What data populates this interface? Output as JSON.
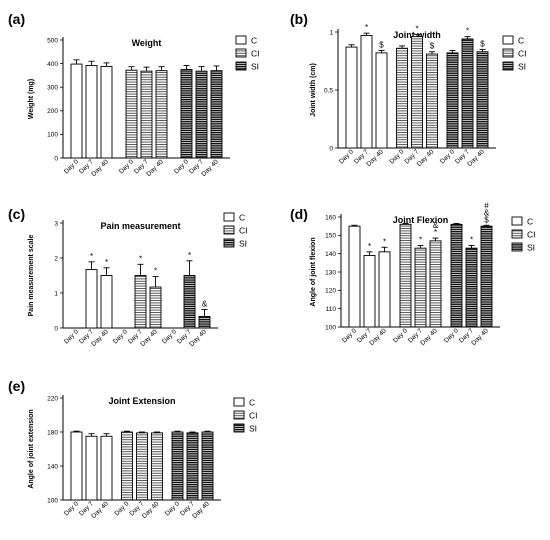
{
  "chart_data": [
    {
      "type": "bar",
      "panel": "(a)",
      "title": "Weight",
      "ylabel": "Weight (mg)",
      "xlabel": "",
      "ylim": [
        0,
        500
      ],
      "yticks": [
        0,
        100,
        200,
        300,
        400,
        500
      ],
      "grid": false,
      "legend_position": "right",
      "groups": [
        "C",
        "CI",
        "SI"
      ],
      "categories": [
        "Day 0",
        "Day 7",
        "Day 40"
      ],
      "series": [
        {
          "name": "C",
          "values": [
            398,
            392,
            388
          ],
          "errors": [
            18,
            18,
            15
          ],
          "annotations": [
            "",
            "",
            ""
          ]
        },
        {
          "name": "CI",
          "values": [
            372,
            368,
            370
          ],
          "errors": [
            15,
            17,
            17
          ],
          "annotations": [
            "",
            "",
            ""
          ]
        },
        {
          "name": "SI",
          "values": [
            375,
            368,
            370
          ],
          "errors": [
            17,
            20,
            20
          ],
          "annotations": [
            "",
            "",
            ""
          ]
        }
      ]
    },
    {
      "type": "bar",
      "panel": "(b)",
      "title": "Joint width",
      "ylabel": "Joint width (cm)",
      "xlabel": "",
      "ylim": [
        0,
        1.0
      ],
      "yticks": [
        0.0,
        0.5,
        1.0
      ],
      "grid": false,
      "legend_position": "right",
      "groups": [
        "C",
        "CI",
        "SI"
      ],
      "categories": [
        "Day 0",
        "Day 7",
        "Day 40"
      ],
      "series": [
        {
          "name": "C",
          "values": [
            0.87,
            0.97,
            0.82
          ],
          "errors": [
            0.02,
            0.02,
            0.02
          ],
          "annotations": [
            "",
            "*",
            "$"
          ]
        },
        {
          "name": "CI",
          "values": [
            0.86,
            0.96,
            0.81
          ],
          "errors": [
            0.02,
            0.02,
            0.02
          ],
          "annotations": [
            "",
            "*",
            "$"
          ]
        },
        {
          "name": "SI",
          "values": [
            0.82,
            0.94,
            0.83
          ],
          "errors": [
            0.02,
            0.02,
            0.02
          ],
          "annotations": [
            "",
            "*",
            "$"
          ]
        }
      ]
    },
    {
      "type": "bar",
      "panel": "(c)",
      "title": "Pain measurement",
      "ylabel": "Pain measurement scale",
      "xlabel": "",
      "ylim": [
        0,
        3
      ],
      "yticks": [
        0,
        1,
        2,
        3
      ],
      "grid": false,
      "legend_position": "right",
      "groups": [
        "C",
        "CI",
        "SI"
      ],
      "categories": [
        "Day 0",
        "Day 7",
        "Day 40"
      ],
      "series": [
        {
          "name": "C",
          "values": [
            0,
            1.67,
            1.5
          ],
          "errors": [
            0,
            0.22,
            0.22
          ],
          "annotations": [
            "",
            "*",
            "*"
          ]
        },
        {
          "name": "CI",
          "values": [
            0,
            1.5,
            1.17
          ],
          "errors": [
            0,
            0.32,
            0.3
          ],
          "annotations": [
            "",
            "*",
            "*"
          ]
        },
        {
          "name": "SI",
          "values": [
            0,
            1.5,
            0.33
          ],
          "errors": [
            0,
            0.42,
            0.2
          ],
          "annotations": [
            "",
            "*",
            "&"
          ]
        }
      ]
    },
    {
      "type": "bar",
      "panel": "(d)",
      "title": "Joint Flexion",
      "ylabel": "Angle of joint flexion",
      "xlabel": "",
      "ylim": [
        100,
        160
      ],
      "yticks": [
        100,
        110,
        120,
        130,
        140,
        150,
        160
      ],
      "grid": false,
      "legend_position": "right",
      "groups": [
        "C",
        "CI",
        "SI"
      ],
      "categories": [
        "Day 0",
        "Day 7",
        "Day 40"
      ],
      "series": [
        {
          "name": "C",
          "values": [
            155,
            139,
            141
          ],
          "errors": [
            0.5,
            2,
            2.5
          ],
          "annotations": [
            "",
            "*",
            "*"
          ]
        },
        {
          "name": "CI",
          "values": [
            156,
            143,
            147
          ],
          "errors": [
            0.5,
            1.5,
            1.5
          ],
          "annotations": [
            "",
            "*",
            "*\n&"
          ]
        },
        {
          "name": "SI",
          "values": [
            156,
            143,
            155
          ],
          "errors": [
            0.5,
            1.5,
            0.5
          ],
          "annotations": [
            "",
            "*",
            "$\n&\n#"
          ]
        }
      ]
    },
    {
      "type": "bar",
      "panel": "(e)",
      "title": "Joint Extension",
      "ylabel": "Angle of joint extension",
      "xlabel": "",
      "ylim": [
        100,
        220
      ],
      "yticks": [
        100,
        140,
        180,
        220
      ],
      "grid": false,
      "legend_position": "right",
      "groups": [
        "C",
        "CI",
        "SI"
      ],
      "categories": [
        "Day 0",
        "Day 7",
        "Day 40"
      ],
      "series": [
        {
          "name": "C",
          "values": [
            180,
            175,
            175
          ],
          "errors": [
            1,
            3,
            3
          ],
          "annotations": [
            "",
            "",
            ""
          ]
        },
        {
          "name": "CI",
          "values": [
            180,
            179,
            179
          ],
          "errors": [
            1,
            1,
            1
          ],
          "annotations": [
            "",
            "",
            ""
          ]
        },
        {
          "name": "SI",
          "values": [
            180,
            179,
            180
          ],
          "errors": [
            1,
            1,
            1
          ],
          "annotations": [
            "",
            "",
            ""
          ]
        }
      ]
    }
  ],
  "style": {
    "bar_fill": "#ffffff",
    "bar_stroke": "#000000",
    "legend_patterns": {
      "C": "plain",
      "CI": "light-horizontal-lines",
      "SI": "dense-horizontal-lines"
    }
  }
}
